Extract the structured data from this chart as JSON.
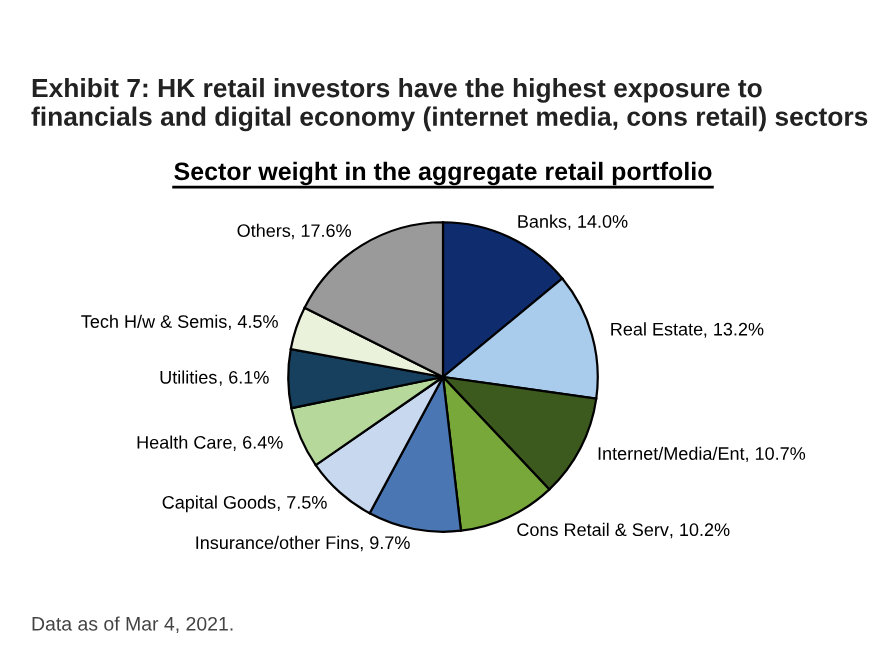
{
  "chart_data": {
    "type": "pie",
    "title": "Exhibit 7: HK retail investors have the highest exposure to financials and digital economy (internet media, cons retail) sectors",
    "subtitle": "Sector weight in the aggregate retail portfolio",
    "categories": [
      "Banks",
      "Real Estate",
      "Internet/Media/Ent",
      "Cons Retail & Serv",
      "Insurance/other Fins",
      "Capital Goods",
      "Health Care",
      "Utilities",
      "Tech H/w & Semis",
      "Others"
    ],
    "values": [
      14.0,
      13.2,
      10.7,
      10.2,
      9.7,
      7.5,
      6.4,
      6.1,
      4.5,
      17.6
    ],
    "value_labels": [
      ", 14.0%",
      ", 13.2%",
      ", 10.7%",
      ", 10.2%",
      ", 9.7%",
      ", 7.5%",
      ", 6.4%",
      ", 6.1%",
      ", 4.5%",
      ", 17.6%"
    ],
    "colors": [
      "#0f2d6e",
      "#a9cbec",
      "#3d5a1e",
      "#78a83a",
      "#4a76b4",
      "#c8d8ee",
      "#b6d89b",
      "#17405e",
      "#ebf2dc",
      "#9a9a9a"
    ],
    "annotations": [
      "Data as of Mar 4, 2021."
    ]
  }
}
